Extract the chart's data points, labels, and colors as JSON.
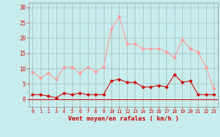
{
  "hours": [
    0,
    1,
    2,
    3,
    4,
    5,
    6,
    7,
    8,
    9,
    10,
    11,
    12,
    13,
    14,
    15,
    16,
    17,
    18,
    19,
    20,
    21,
    22,
    23
  ],
  "wind_avg": [
    1.5,
    1.5,
    1.0,
    0.5,
    2.0,
    1.5,
    2.0,
    1.5,
    1.5,
    1.5,
    6.0,
    6.5,
    5.5,
    5.5,
    4.0,
    4.0,
    4.5,
    4.0,
    8.0,
    5.5,
    6.0,
    1.5,
    1.5,
    1.5
  ],
  "wind_gust": [
    9.0,
    7.0,
    8.5,
    6.5,
    10.5,
    10.5,
    8.5,
    10.5,
    9.0,
    10.5,
    23.0,
    27.0,
    18.0,
    18.0,
    16.5,
    16.5,
    16.5,
    15.5,
    13.5,
    19.5,
    16.5,
    15.5,
    10.5,
    3.5
  ],
  "color_avg": "#cc0000",
  "color_gust": "#ff9999",
  "bg_color": "#c8ecec",
  "grid_color": "#a0b8b8",
  "xlabel": "Vent moyen/en rafales ( km/h )",
  "tick_color": "#cc0000",
  "yticks": [
    0,
    5,
    10,
    15,
    20,
    25,
    30
  ],
  "ylim": [
    -2.5,
    31.5
  ],
  "xlim": [
    -0.5,
    23.5
  ],
  "marker_size": 2.5
}
